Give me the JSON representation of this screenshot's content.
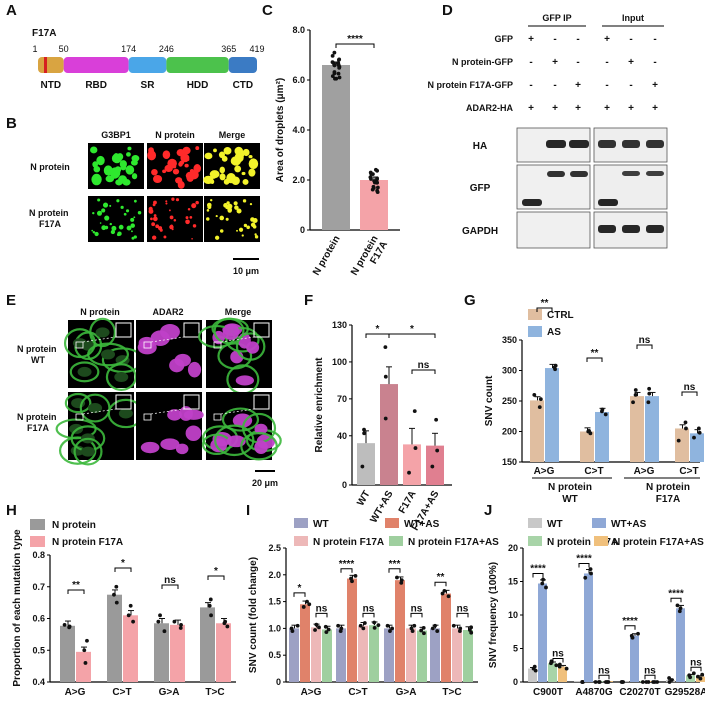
{
  "panel_letters": [
    "A",
    "B",
    "C",
    "D",
    "E",
    "F",
    "G",
    "H",
    "I",
    "J"
  ],
  "panel_a": {
    "mutation_label": "F17A",
    "domains": [
      {
        "name": "NTD",
        "start": 1,
        "end": 50,
        "color": "#d9a441"
      },
      {
        "name": "RBD",
        "start": 50,
        "end": 174,
        "color": "#d93fd9"
      },
      {
        "name": "SR",
        "start": 174,
        "end": 246,
        "color": "#4aa6e8"
      },
      {
        "name": "HDD",
        "start": 246,
        "end": 365,
        "color": "#4cc24c"
      },
      {
        "name": "CTD",
        "start": 365,
        "end": 419,
        "color": "#3b7bc4"
      }
    ],
    "positions": [
      "1",
      "50",
      "174",
      "246",
      "365",
      "419"
    ]
  },
  "panel_b": {
    "columns": [
      "G3BP1",
      "N protein",
      "Merge"
    ],
    "rows": [
      "N protein",
      "N protein\nF17A"
    ],
    "scale_bar": "10 μm"
  },
  "panel_e": {
    "columns": [
      "N protein",
      "ADAR2",
      "Merge"
    ],
    "rows": [
      "N protein\nWT",
      "N protein\nF17A"
    ],
    "scale_bar": "20 μm"
  },
  "panel_d": {
    "header_left": "GFP IP",
    "header_right": "Input",
    "conditions": [
      {
        "label": "GFP",
        "marks": [
          "+",
          "-",
          "-",
          "+",
          "-",
          "-"
        ]
      },
      {
        "label": "N protein-GFP",
        "marks": [
          "-",
          "+",
          "-",
          "-",
          "+",
          "-"
        ]
      },
      {
        "label": "N protein F17A-GFP",
        "marks": [
          "-",
          "-",
          "+",
          "-",
          "-",
          "+"
        ]
      },
      {
        "label": "ADAR2-HA",
        "marks": [
          "+",
          "+",
          "+",
          "+",
          "+",
          "+"
        ]
      }
    ],
    "blots": [
      "HA",
      "GFP",
      "GAPDH"
    ]
  },
  "chart_data": [
    {
      "panel": "C",
      "type": "bar",
      "categories": [
        "N protein",
        "N protein\nF17A"
      ],
      "values": [
        6.6,
        2.0
      ],
      "colors": [
        "#a0a0a0",
        "#f4a3a8"
      ],
      "ylabel": "Area of droplets (μm²)",
      "ylim": [
        0,
        8
      ],
      "yticks": [
        0,
        2,
        4,
        6,
        8
      ],
      "yticklabels": [
        "0",
        "2.0",
        "4.0",
        "6.0",
        "8.0"
      ],
      "significance": [
        "****"
      ]
    },
    {
      "panel": "F",
      "type": "bar",
      "categories": [
        "WT",
        "WT+AS",
        "F17A",
        "F17A+AS"
      ],
      "values": [
        34,
        82,
        33,
        32
      ],
      "errors": [
        10,
        14,
        13,
        10
      ],
      "colors": [
        "#bdbdbd",
        "#c9828f",
        "#f4a3a8",
        "#e07f90"
      ],
      "ylabel": "Relative enrichment",
      "ylim": [
        0,
        130
      ],
      "yticks": [
        0,
        40,
        70,
        100,
        130
      ],
      "significance": [
        "*",
        "*",
        "ns"
      ]
    },
    {
      "panel": "G",
      "type": "bar",
      "categories": [
        "A>G",
        "C>T",
        "A>G",
        "C>T"
      ],
      "group_labels": [
        "N protein\nWT",
        "N protein\nF17A"
      ],
      "series": [
        {
          "name": "CTRL",
          "values": [
            251,
            200,
            258,
            205
          ],
          "color": "#e0bea0"
        },
        {
          "name": "AS",
          "values": [
            304,
            232,
            258,
            197
          ],
          "color": "#8fb4de"
        }
      ],
      "ylabel": "SNV count",
      "ylim": [
        150,
        350
      ],
      "yticks": [
        150,
        200,
        250,
        300,
        350
      ],
      "significance": [
        "**",
        "**",
        "ns",
        "ns"
      ]
    },
    {
      "panel": "H",
      "type": "bar",
      "categories": [
        "A>G",
        "C>T",
        "G>A",
        "T>C"
      ],
      "series": [
        {
          "name": "N protein",
          "values": [
            0.577,
            0.675,
            0.585,
            0.635
          ],
          "color": "#9a9a9a"
        },
        {
          "name": "N protein F17A",
          "values": [
            0.495,
            0.61,
            0.58,
            0.585
          ],
          "color": "#f4a3a8"
        }
      ],
      "ylabel": "Proportion of each mutation type",
      "ylim": [
        0.4,
        0.8
      ],
      "yticks": [
        0.4,
        0.5,
        0.6,
        0.7,
        0.8
      ],
      "significance": [
        "**",
        "*",
        "ns",
        "*"
      ]
    },
    {
      "panel": "I",
      "type": "bar",
      "categories": [
        "A>G",
        "C>T",
        "G>A",
        "T>C"
      ],
      "series": [
        {
          "name": "WT",
          "values": [
            1.0,
            1.0,
            1.0,
            1.0
          ],
          "color": "#9da1c4"
        },
        {
          "name": "WT+AS",
          "values": [
            1.45,
            1.93,
            1.9,
            1.65
          ],
          "color": "#e0826a"
        },
        {
          "name": "N protein F17A",
          "values": [
            1.02,
            1.05,
            1.0,
            1.0
          ],
          "color": "#edb8b8"
        },
        {
          "name": "N protein F17A+AS",
          "values": [
            0.98,
            1.06,
            0.96,
            0.97
          ],
          "color": "#9fcf9f"
        }
      ],
      "ylabel": "SNV count (fold change)",
      "ylim": [
        0,
        2.5
      ],
      "yticks": [
        0,
        0.5,
        1.0,
        1.5,
        2.0,
        2.5
      ],
      "significance": [
        "*",
        "****",
        "***",
        "**",
        "ns",
        "ns",
        "ns",
        "ns"
      ]
    },
    {
      "panel": "J",
      "type": "bar",
      "categories": [
        "C900T",
        "A4870G",
        "C20270T",
        "G29528A"
      ],
      "series": [
        {
          "name": "WT",
          "values": [
            2.0,
            0.0,
            0.0,
            0.3
          ],
          "color": "#c8c8c8"
        },
        {
          "name": "WT+AS",
          "values": [
            14.7,
            16.2,
            6.9,
            11.0
          ],
          "color": "#8fa8d6"
        },
        {
          "name": "N protein F17A",
          "values": [
            2.8,
            0.0,
            0.0,
            1.0
          ],
          "color": "#a8d4a8"
        },
        {
          "name": "N protein F17A+AS",
          "values": [
            2.3,
            0.0,
            0.0,
            0.8
          ],
          "color": "#f0c07c"
        }
      ],
      "ylabel": "SNV frequency (100%)",
      "ylim": [
        0,
        20
      ],
      "yticks": [
        0,
        5,
        10,
        15,
        20
      ],
      "significance": [
        "****",
        "****",
        "****",
        "****",
        "ns",
        "ns",
        "ns",
        "ns"
      ]
    }
  ]
}
